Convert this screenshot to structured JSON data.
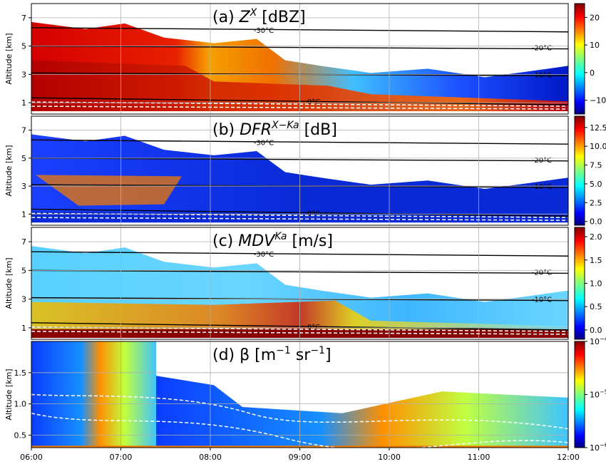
{
  "chart_data": [
    {
      "type": "heatmap",
      "panel": "a",
      "title": "(a) Z",
      "title_sup": "X",
      "title_unit": "[dBZ]",
      "ylabel": "Altitude [km]",
      "yticks": [
        1,
        3,
        5,
        7
      ],
      "ylim": [
        0.2,
        8.0
      ],
      "colorbar": {
        "ticks": [
          "20",
          "10",
          "0",
          "−10"
        ],
        "values": [
          20,
          10,
          0,
          -10
        ],
        "range": [
          -15,
          25
        ]
      },
      "isotherms": [
        {
          "label": "-30°C",
          "y": [
            6.3,
            6.0
          ]
        },
        {
          "label": "-20°C",
          "y": [
            5.0,
            4.8
          ]
        },
        {
          "label": "-10°C",
          "y": [
            3.1,
            2.9
          ]
        },
        {
          "label": "0°C",
          "y": [
            1.35,
            0.85
          ]
        }
      ]
    },
    {
      "type": "heatmap",
      "panel": "b",
      "title": "(b) DFR",
      "title_sup": "X−Ka",
      "title_unit": "[dB]",
      "ylabel": "Altitude [km]",
      "yticks": [
        1,
        3,
        5,
        7
      ],
      "ylim": [
        0.2,
        8.0
      ],
      "colorbar": {
        "ticks": [
          "12.5",
          "10.0",
          "7.5",
          "5.0",
          "2.5",
          "0.0"
        ],
        "values": [
          12.5,
          10,
          7.5,
          5,
          2.5,
          0
        ],
        "range": [
          -0.5,
          14
        ]
      },
      "isotherms": [
        {
          "label": "-30°C",
          "y": [
            6.3,
            6.0
          ]
        },
        {
          "label": "-20°C",
          "y": [
            5.0,
            4.8
          ]
        },
        {
          "label": "-10°C",
          "y": [
            3.1,
            2.9
          ]
        },
        {
          "label": "0°C",
          "y": [
            1.35,
            0.85
          ]
        }
      ]
    },
    {
      "type": "heatmap",
      "panel": "c",
      "title": "(c) MDV",
      "title_sup": "Ka",
      "title_unit": "[m/s]",
      "ylabel": "Altitude [km]",
      "yticks": [
        1,
        3,
        5,
        7
      ],
      "ylim": [
        0.2,
        8.0
      ],
      "colorbar": {
        "ticks": [
          "2.0",
          "1.5",
          "1.0",
          "0.5",
          "0.0"
        ],
        "values": [
          2.0,
          1.5,
          1.0,
          0.5,
          0.0
        ],
        "range": [
          -0.2,
          2.2
        ]
      },
      "isotherms": [
        {
          "label": "-30°C",
          "y": [
            6.3,
            6.0
          ]
        },
        {
          "label": "-20°C",
          "y": [
            5.0,
            4.8
          ]
        },
        {
          "label": "-10°C",
          "y": [
            3.1,
            2.9
          ]
        },
        {
          "label": "0°C",
          "y": [
            1.35,
            0.85
          ]
        }
      ]
    },
    {
      "type": "heatmap",
      "panel": "d",
      "title": "(d) β [m",
      "title_sup": "−1",
      "title_mid": " sr",
      "title_sup2": "−1",
      "title_end": "]",
      "ylabel": "Altitude [km]",
      "yticks": [
        0.5,
        1.0,
        1.5
      ],
      "yticklabels": [
        "0.5",
        "1.0",
        "1.5"
      ],
      "ylim": [
        0.3,
        2.0
      ],
      "colorbar": {
        "scale": "log",
        "ticks_base": [
          "10",
          "10",
          "10"
        ],
        "ticks_exp": [
          "−4",
          "−5",
          "−6"
        ],
        "values": [
          0.0001,
          1e-05,
          1e-06
        ]
      },
      "xticks": [
        "06:00",
        "07:00",
        "08:00",
        "09:00",
        "10:00",
        "11:00",
        "12:00"
      ],
      "xlim": [
        "06:00",
        "12:00"
      ]
    }
  ]
}
